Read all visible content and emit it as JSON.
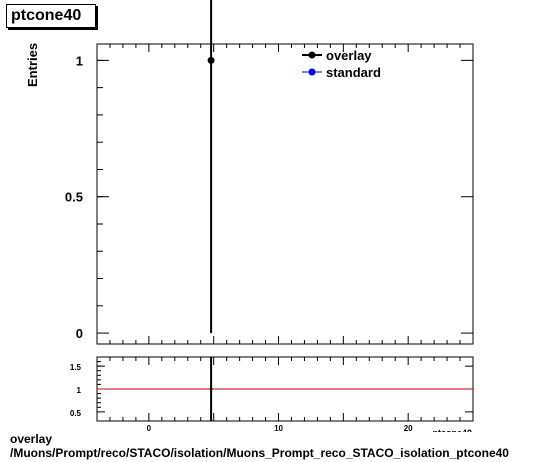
{
  "histogram_title": "ptcone40",
  "footer": {
    "line1": "overlay",
    "line2": "/Muons/Prompt/reco/STACO/isolation/Muons_Prompt_reco_STACO_isolation_ptcone40"
  },
  "colors": {
    "overlay": "#000000",
    "standard": "#0000ff",
    "ratio_line": "#cc0000"
  },
  "chart_data": [
    {
      "type": "scatter",
      "title": "ptcone40",
      "ylabel": "Entries",
      "xlabel": "ptcone40",
      "xlim": [
        -4,
        25
      ],
      "ylim": [
        -0.04,
        1.06
      ],
      "yticks": [
        0,
        0.5,
        1
      ],
      "ytick_labels": [
        "0",
        "0.5",
        "1"
      ],
      "series": [
        {
          "name": "overlay",
          "x": [
            4.8
          ],
          "y": [
            1
          ],
          "yerr": [
            1
          ]
        },
        {
          "name": "standard",
          "x": [],
          "y": []
        }
      ],
      "legend": {
        "position": "top-right",
        "entries": [
          "overlay",
          "standard"
        ]
      }
    },
    {
      "type": "line",
      "title": "",
      "xlim": [
        -4,
        25
      ],
      "ylim": [
        0.3,
        1.7
      ],
      "xticks": [
        0,
        10,
        20
      ],
      "xtick_labels": [
        "0",
        "10",
        "20"
      ],
      "yticks": [
        0.5,
        1,
        1.5
      ],
      "ytick_labels": [
        "0.5",
        "1",
        "1.5"
      ],
      "reference_line": 1,
      "series": [
        {
          "name": "",
          "x": [
            4.8
          ],
          "y": [
            1
          ]
        }
      ]
    }
  ]
}
